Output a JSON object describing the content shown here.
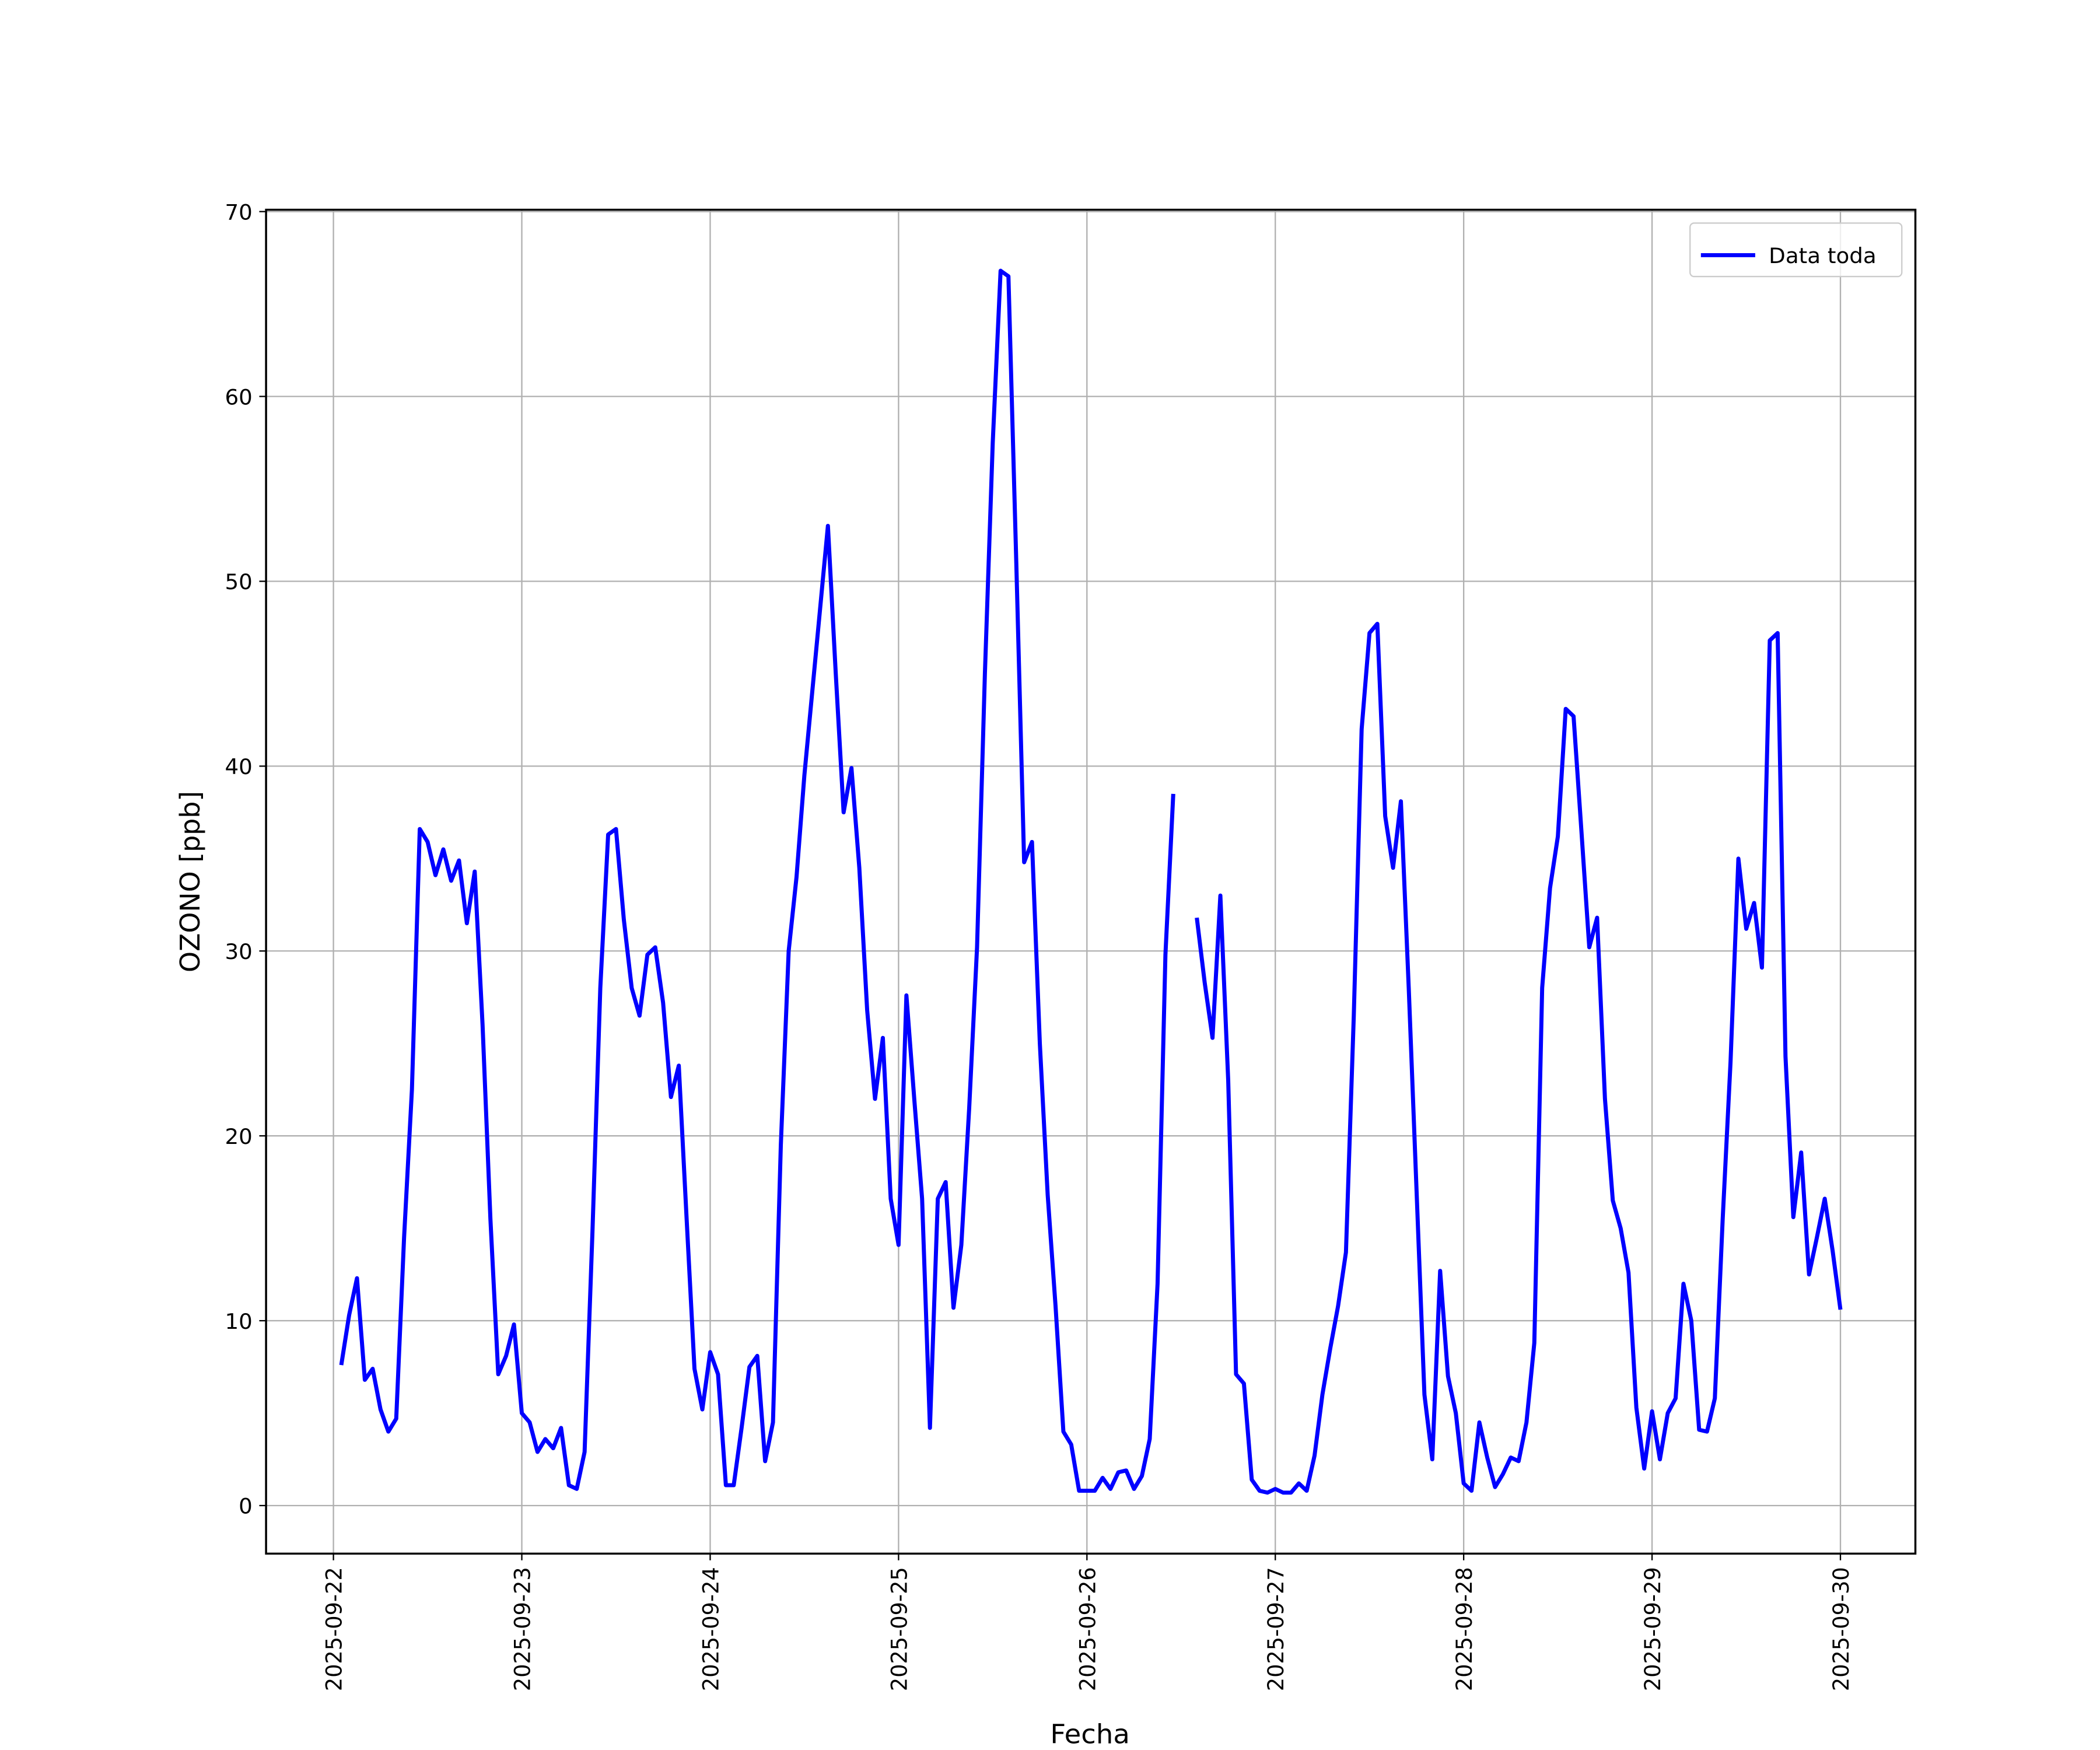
{
  "chart_data": {
    "type": "line",
    "xlabel": "Fecha",
    "ylabel": "OZONO [ppb]",
    "x": [
      "2025-09-22 01:00",
      "2025-09-22 02:00",
      "2025-09-22 03:00",
      "2025-09-22 04:00",
      "2025-09-22 05:00",
      "2025-09-22 06:00",
      "2025-09-22 07:00",
      "2025-09-22 08:00",
      "2025-09-22 09:00",
      "2025-09-22 10:00",
      "2025-09-22 11:00",
      "2025-09-22 12:00",
      "2025-09-22 13:00",
      "2025-09-22 14:00",
      "2025-09-22 15:00",
      "2025-09-22 16:00",
      "2025-09-22 17:00",
      "2025-09-22 18:00",
      "2025-09-22 19:00",
      "2025-09-22 20:00",
      "2025-09-22 21:00",
      "2025-09-22 22:00",
      "2025-09-22 23:00",
      "2025-09-23 00:00",
      "2025-09-23 01:00",
      "2025-09-23 02:00",
      "2025-09-23 03:00",
      "2025-09-23 04:00",
      "2025-09-23 05:00",
      "2025-09-23 06:00",
      "2025-09-23 07:00",
      "2025-09-23 08:00",
      "2025-09-23 09:00",
      "2025-09-23 10:00",
      "2025-09-23 11:00",
      "2025-09-23 12:00",
      "2025-09-23 13:00",
      "2025-09-23 14:00",
      "2025-09-23 15:00",
      "2025-09-23 16:00",
      "2025-09-23 17:00",
      "2025-09-23 18:00",
      "2025-09-23 19:00",
      "2025-09-23 20:00",
      "2025-09-23 21:00",
      "2025-09-23 22:00",
      "2025-09-23 23:00",
      "2025-09-24 00:00",
      "2025-09-24 01:00",
      "2025-09-24 02:00",
      "2025-09-24 03:00",
      "2025-09-24 04:00",
      "2025-09-24 05:00",
      "2025-09-24 06:00",
      "2025-09-24 07:00",
      "2025-09-24 08:00",
      "2025-09-24 09:00",
      "2025-09-24 10:00",
      "2025-09-24 11:00",
      "2025-09-24 12:00",
      "2025-09-24 13:00",
      "2025-09-24 14:00",
      "2025-09-24 15:00",
      "2025-09-24 16:00",
      "2025-09-24 17:00",
      "2025-09-24 18:00",
      "2025-09-24 19:00",
      "2025-09-24 20:00",
      "2025-09-24 21:00",
      "2025-09-24 22:00",
      "2025-09-24 23:00",
      "2025-09-25 00:00",
      "2025-09-25 01:00",
      "2025-09-25 02:00",
      "2025-09-25 03:00",
      "2025-09-25 04:00",
      "2025-09-25 05:00",
      "2025-09-25 06:00",
      "2025-09-25 07:00",
      "2025-09-25 08:00",
      "2025-09-25 09:00",
      "2025-09-25 10:00",
      "2025-09-25 11:00",
      "2025-09-25 12:00",
      "2025-09-25 13:00",
      "2025-09-25 14:00",
      "2025-09-25 15:00",
      "2025-09-25 16:00",
      "2025-09-25 17:00",
      "2025-09-25 18:00",
      "2025-09-25 19:00",
      "2025-09-25 20:00",
      "2025-09-25 21:00",
      "2025-09-25 22:00",
      "2025-09-25 23:00",
      "2025-09-26 00:00",
      "2025-09-26 01:00",
      "2025-09-26 02:00",
      "2025-09-26 03:00",
      "2025-09-26 04:00",
      "2025-09-26 05:00",
      "2025-09-26 06:00",
      "2025-09-26 07:00",
      "2025-09-26 08:00",
      "2025-09-26 09:00",
      "2025-09-26 10:00",
      "2025-09-26 11:00",
      "2025-09-26 12:00",
      "2025-09-26 13:00",
      "2025-09-26 14:00",
      "2025-09-26 15:00",
      "2025-09-26 16:00",
      "2025-09-26 17:00",
      "2025-09-26 18:00",
      "2025-09-26 19:00",
      "2025-09-26 20:00",
      "2025-09-26 21:00",
      "2025-09-26 22:00",
      "2025-09-26 23:00",
      "2025-09-27 00:00",
      "2025-09-27 01:00",
      "2025-09-27 02:00",
      "2025-09-27 03:00",
      "2025-09-27 04:00",
      "2025-09-27 05:00",
      "2025-09-27 06:00",
      "2025-09-27 07:00",
      "2025-09-27 08:00",
      "2025-09-27 09:00",
      "2025-09-27 10:00",
      "2025-09-27 11:00",
      "2025-09-27 12:00",
      "2025-09-27 13:00",
      "2025-09-27 14:00",
      "2025-09-27 15:00",
      "2025-09-27 16:00",
      "2025-09-27 17:00",
      "2025-09-27 18:00",
      "2025-09-27 19:00",
      "2025-09-27 20:00",
      "2025-09-27 21:00",
      "2025-09-27 22:00",
      "2025-09-27 23:00",
      "2025-09-28 00:00",
      "2025-09-28 01:00",
      "2025-09-28 02:00",
      "2025-09-28 03:00",
      "2025-09-28 04:00",
      "2025-09-28 05:00",
      "2025-09-28 06:00",
      "2025-09-28 07:00",
      "2025-09-28 08:00",
      "2025-09-28 09:00",
      "2025-09-28 10:00",
      "2025-09-28 11:00",
      "2025-09-28 12:00",
      "2025-09-28 13:00",
      "2025-09-28 14:00",
      "2025-09-28 15:00",
      "2025-09-28 16:00",
      "2025-09-28 17:00",
      "2025-09-28 18:00",
      "2025-09-28 19:00",
      "2025-09-28 20:00",
      "2025-09-28 21:00",
      "2025-09-28 22:00",
      "2025-09-28 23:00",
      "2025-09-29 00:00",
      "2025-09-29 01:00",
      "2025-09-29 02:00",
      "2025-09-29 03:00",
      "2025-09-29 04:00",
      "2025-09-29 05:00",
      "2025-09-29 06:00",
      "2025-09-29 07:00",
      "2025-09-29 08:00",
      "2025-09-29 09:00",
      "2025-09-29 10:00",
      "2025-09-29 11:00",
      "2025-09-29 12:00",
      "2025-09-29 13:00",
      "2025-09-29 14:00",
      "2025-09-29 15:00",
      "2025-09-29 16:00",
      "2025-09-29 17:00",
      "2025-09-29 18:00",
      "2025-09-29 19:00",
      "2025-09-29 20:00",
      "2025-09-29 21:00",
      "2025-09-29 22:00",
      "2025-09-29 23:00",
      "2025-09-30 00:00"
    ],
    "series": [
      {
        "name": "Data toda",
        "color": "#0000ff",
        "values": [
          7.6,
          10.3,
          12.3,
          6.8,
          7.4,
          5.2,
          4.0,
          4.7,
          14.5,
          22.5,
          36.6,
          35.9,
          34.1,
          35.5,
          33.8,
          34.9,
          31.5,
          34.3,
          26.0,
          15.5,
          7.1,
          8.1,
          9.8,
          5.0,
          4.5,
          2.9,
          3.6,
          3.1,
          4.2,
          1.1,
          0.9,
          2.9,
          14.8,
          28.0,
          36.3,
          36.6,
          31.7,
          28.0,
          26.5,
          29.8,
          30.2,
          27.2,
          22.1,
          23.8,
          15.5,
          7.4,
          5.2,
          8.3,
          7.1,
          1.1,
          1.1,
          4.2,
          7.5,
          8.1,
          2.4,
          4.5,
          19.5,
          30.0,
          34.0,
          39.5,
          44.0,
          48.5,
          53.0,
          45.0,
          37.5,
          39.9,
          34.5,
          26.8,
          22.0,
          25.3,
          16.6,
          14.1,
          27.6,
          22.0,
          16.6,
          4.2,
          16.6,
          17.5,
          10.7,
          14.1,
          21.5,
          30.2,
          45.0,
          57.5,
          66.8,
          66.5,
          51.0,
          34.8,
          35.9,
          25.0,
          16.8,
          10.8,
          4.0,
          3.3,
          0.8,
          0.8,
          0.8,
          1.5,
          0.9,
          1.8,
          1.9,
          0.9,
          1.6,
          3.6,
          12.0,
          29.8,
          38.5,
          null,
          null,
          31.8,
          28.3,
          25.3,
          33.0,
          23.0,
          7.1,
          6.6,
          1.4,
          0.8,
          0.7,
          0.9,
          0.7,
          0.7,
          1.2,
          0.8,
          2.7,
          6.0,
          8.5,
          10.8,
          13.7,
          26.5,
          42.0,
          47.2,
          47.7,
          37.3,
          34.5,
          38.1,
          28.0,
          17.0,
          6.0,
          2.5,
          12.7,
          7.0,
          5.0,
          1.2,
          0.8,
          4.5,
          2.6,
          1.0,
          1.7,
          2.6,
          2.4,
          4.5,
          8.8,
          28.0,
          33.4,
          36.2,
          43.1,
          42.7,
          36.5,
          30.2,
          31.8,
          22.0,
          16.5,
          15.0,
          12.6,
          5.3,
          2.0,
          5.1,
          2.5,
          5.0,
          5.8,
          12.0,
          10.0,
          4.1,
          4.0,
          5.8,
          15.5,
          24.0,
          35.0,
          31.2,
          32.6,
          29.1,
          46.8,
          47.2,
          24.3,
          15.6,
          19.1,
          12.5,
          14.5,
          16.6,
          13.8,
          10.6
        ]
      }
    ],
    "xlim": [
      "2025-09-21 15:25",
      "2025-09-30 09:33"
    ],
    "xticks": [
      "2025-09-22",
      "2025-09-23",
      "2025-09-24",
      "2025-09-25",
      "2025-09-26",
      "2025-09-27",
      "2025-09-28",
      "2025-09-29",
      "2025-09-30"
    ],
    "ylim": [
      -2.6,
      70.1
    ],
    "yticks": [
      0,
      10,
      20,
      30,
      40,
      50,
      60,
      70
    ],
    "grid": true,
    "legend": "upper right"
  }
}
